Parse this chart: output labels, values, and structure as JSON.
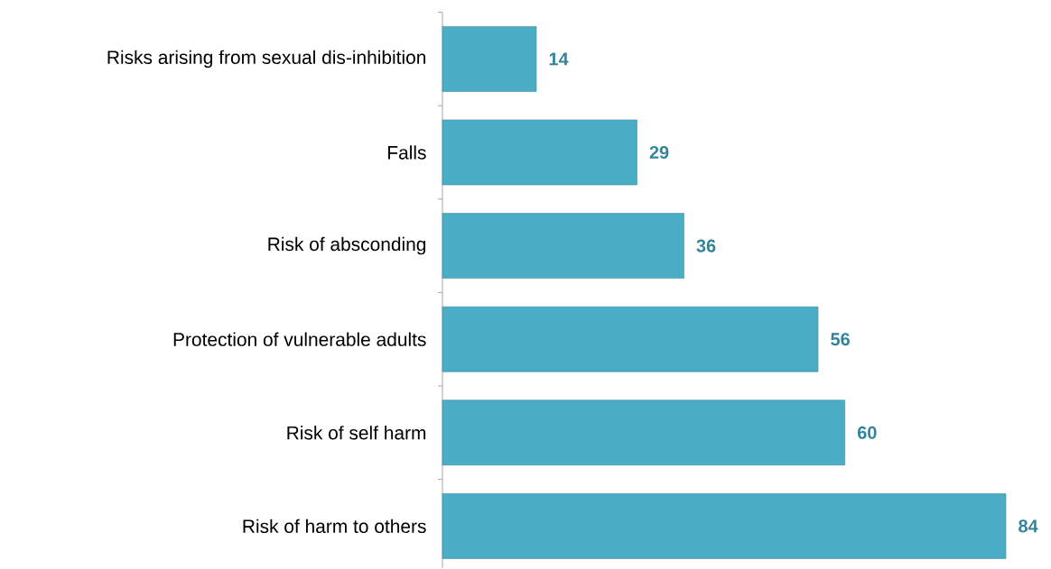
{
  "chart_data": {
    "type": "bar",
    "orientation": "horizontal",
    "categories": [
      "Risks arising from sexual dis-inhibition",
      "Falls",
      "Risk of absconding",
      "Protection of vulnerable adults",
      "Risk of self harm",
      "Risk of harm to others"
    ],
    "values": [
      14,
      29,
      36,
      56,
      60,
      84
    ],
    "color": "#4bacc6",
    "data_labels": true,
    "tick_labels": "y"
  }
}
